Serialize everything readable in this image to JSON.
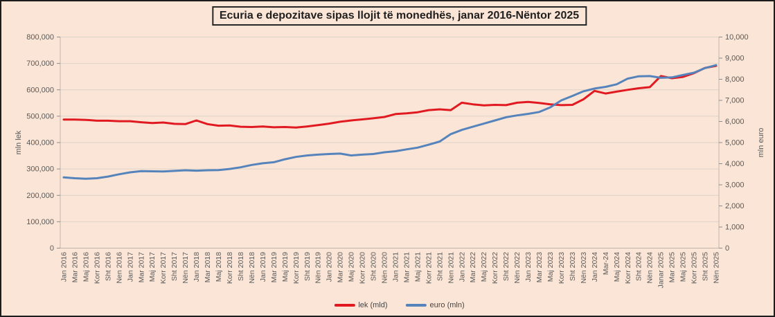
{
  "title": "Ecuria e depozitave sipas llojit të monedhës, janar 2016-Nëntor 2025",
  "colors": {
    "background": "#fbe5d6",
    "frame_border": "#1c1c1c",
    "lek_line": "#e01a20",
    "euro_line": "#5583bb",
    "gridline": "#ddd4c9",
    "axis_line": "#c0b5a9",
    "tick_mark": "#8c8c8c",
    "axis_text": "#595959"
  },
  "legend": {
    "lek_label": "lek (mld)",
    "euro_label": "euro (mln)"
  },
  "chart_data": {
    "type": "line",
    "title": "Ecuria e depozitave sipas llojit të monedhës, janar 2016-Nëntor 2025",
    "grid": "horizontal",
    "legend_position": "bottom",
    "categories": [
      "Jan 2016",
      "Mar 2016",
      "Maj 2016",
      "Korr 2016",
      "Sht 2016",
      "Nen 2016",
      "Jan 2017",
      "Mar 2017",
      "Maj 2017",
      "Korr 2017",
      "Sht 2017",
      "Nën 2017",
      "Jan 2018",
      "Mar 2018",
      "Maj 2018",
      "Korr 2018",
      "Sht 2018",
      "Nën 2018",
      "Jan 2019",
      "Mar 2019",
      "Maj 2019",
      "Korr 2019",
      "Sht 2019",
      "Nën 2019",
      "Jan 2020",
      "Mar 2020",
      "Maj 2020",
      "Korr 2020",
      "Sht 2020",
      "Nën 2020",
      "Jan 2021",
      "Mar 2021",
      "Maj 2021",
      "Korr 2021",
      "Sht 2021",
      "Nen 2021",
      "Jan 2022",
      "Mar 2022",
      "Maj 2022",
      "Korr 2022",
      "Sht 2022",
      "Nën 2022",
      "Jan 2023",
      "Mar 2023",
      "Maj 2023",
      "Korr 2023",
      "Sht 2023",
      "Nën 2023",
      "Jan 2024",
      "Mar-24",
      "Maj 2024",
      "Korr 2024",
      "Sht 2024",
      "Nën 2024",
      "Janar 2025",
      "Mar 2025",
      "Maj 2025",
      "Korr 2025",
      "Sht 2025",
      "Nën 2025"
    ],
    "left_axis": {
      "title": "mln lek",
      "min": 0,
      "max": 800000,
      "step": 100000
    },
    "right_axis": {
      "title": "mln euro",
      "min": 0,
      "max": 10000,
      "step": 1000
    },
    "series": [
      {
        "name": "lek (mld)",
        "axis": "left",
        "color": "#e01a20",
        "values": [
          487000,
          487000,
          486000,
          483000,
          483000,
          481000,
          481000,
          477000,
          474000,
          476000,
          471000,
          470000,
          484000,
          470000,
          464000,
          465000,
          460000,
          459000,
          461000,
          458000,
          459000,
          457000,
          461000,
          466000,
          472000,
          479000,
          484000,
          488000,
          492000,
          497000,
          508000,
          511000,
          515000,
          523000,
          526000,
          523000,
          551000,
          545000,
          541000,
          543000,
          542000,
          551000,
          554000,
          550000,
          545000,
          542000,
          543000,
          564000,
          596000,
          586000,
          593000,
          600000,
          606000,
          610000,
          652000,
          644000,
          649000,
          663000,
          683000,
          691000
        ]
      },
      {
        "name": "euro (mln)",
        "axis": "right",
        "color": "#5583bb",
        "values": [
          3350,
          3310,
          3290,
          3310,
          3390,
          3500,
          3590,
          3650,
          3640,
          3630,
          3660,
          3690,
          3670,
          3690,
          3700,
          3750,
          3830,
          3940,
          4020,
          4070,
          4210,
          4320,
          4390,
          4430,
          4460,
          4480,
          4390,
          4430,
          4460,
          4540,
          4590,
          4680,
          4760,
          4900,
          5050,
          5400,
          5600,
          5750,
          5900,
          6050,
          6200,
          6290,
          6360,
          6450,
          6670,
          7000,
          7210,
          7430,
          7560,
          7640,
          7760,
          8030,
          8140,
          8150,
          8070,
          8090,
          8200,
          8310,
          8530,
          8670
        ]
      }
    ]
  }
}
